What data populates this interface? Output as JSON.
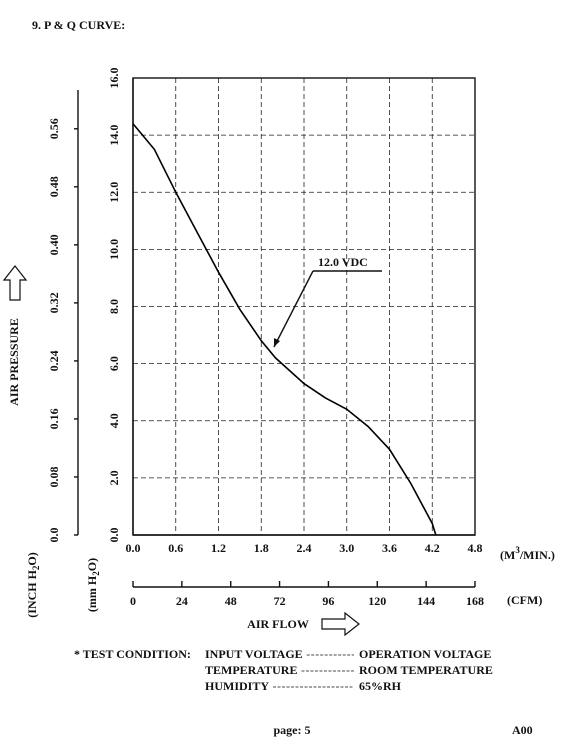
{
  "heading": "9. P & Q CURVE:",
  "chart_data": {
    "type": "line",
    "x_label": "AIR FLOW",
    "y_label": "AIR PRESSURE",
    "x_unit": [
      "(M",
      "3",
      "/MIN.)"
    ],
    "x2_unit": "(CFM)",
    "y_unit": [
      "(mm H",
      "2",
      "O)"
    ],
    "y2_unit": [
      "(INCH H",
      "2",
      "O)"
    ],
    "x": [
      0,
      0.3,
      0.6,
      0.9,
      1.2,
      1.5,
      1.8,
      2.0,
      2.4,
      2.7,
      3.0,
      3.3,
      3.6,
      3.9,
      4.2,
      4.25
    ],
    "series": [
      {
        "name": "12.0 VDC",
        "color": "#000000",
        "values": [
          14.4,
          13.5,
          12.0,
          10.6,
          9.2,
          7.9,
          6.8,
          6.2,
          5.3,
          4.8,
          4.4,
          3.8,
          3.0,
          1.8,
          0.4,
          0
        ]
      }
    ],
    "xlim": [
      0,
      4.8
    ],
    "xticks": [
      {
        "value": 0,
        "label": "0.0"
      },
      0.6,
      1.2,
      1.8,
      2.4,
      {
        "value": 3,
        "label": "3.0"
      },
      3.6,
      4.2,
      4.8
    ],
    "x2lim": [
      0,
      168
    ],
    "x2ticks": [
      0,
      24,
      48,
      72,
      96,
      120,
      144,
      168
    ],
    "ylim": [
      0,
      16
    ],
    "yticks": [
      {
        "value": 0,
        "label": "0.0"
      },
      {
        "value": 2,
        "label": "2.0"
      },
      {
        "value": 4,
        "label": "4.0"
      },
      {
        "value": 6,
        "label": "6.0"
      },
      {
        "value": 8,
        "label": "8.0"
      },
      {
        "value": 10,
        "label": "10.0"
      },
      {
        "value": 12,
        "label": "12.0"
      },
      {
        "value": 14,
        "label": "14.0"
      },
      {
        "value": 16,
        "label": "16.0"
      }
    ],
    "y2lim": [
      0,
      0.63
    ],
    "y2ticks": [
      {
        "value": 0,
        "label": "0.0"
      },
      0.08,
      0.16,
      0.24,
      0.32,
      {
        "value": 0.4,
        "label": "0.40"
      },
      0.48,
      0.56
    ],
    "grid": true
  },
  "test_condition": {
    "label": "* TEST CONDITION:",
    "rows": [
      {
        "item": "INPUT VOLTAGE",
        "value": "OPERATION VOLTAGE"
      },
      {
        "item": "TEMPERATURE",
        "value": "ROOM TEMPERATURE"
      },
      {
        "item": "HUMIDITY",
        "value": "65%RH"
      }
    ]
  },
  "footer": {
    "page": "page: 5",
    "revision": "A00"
  }
}
